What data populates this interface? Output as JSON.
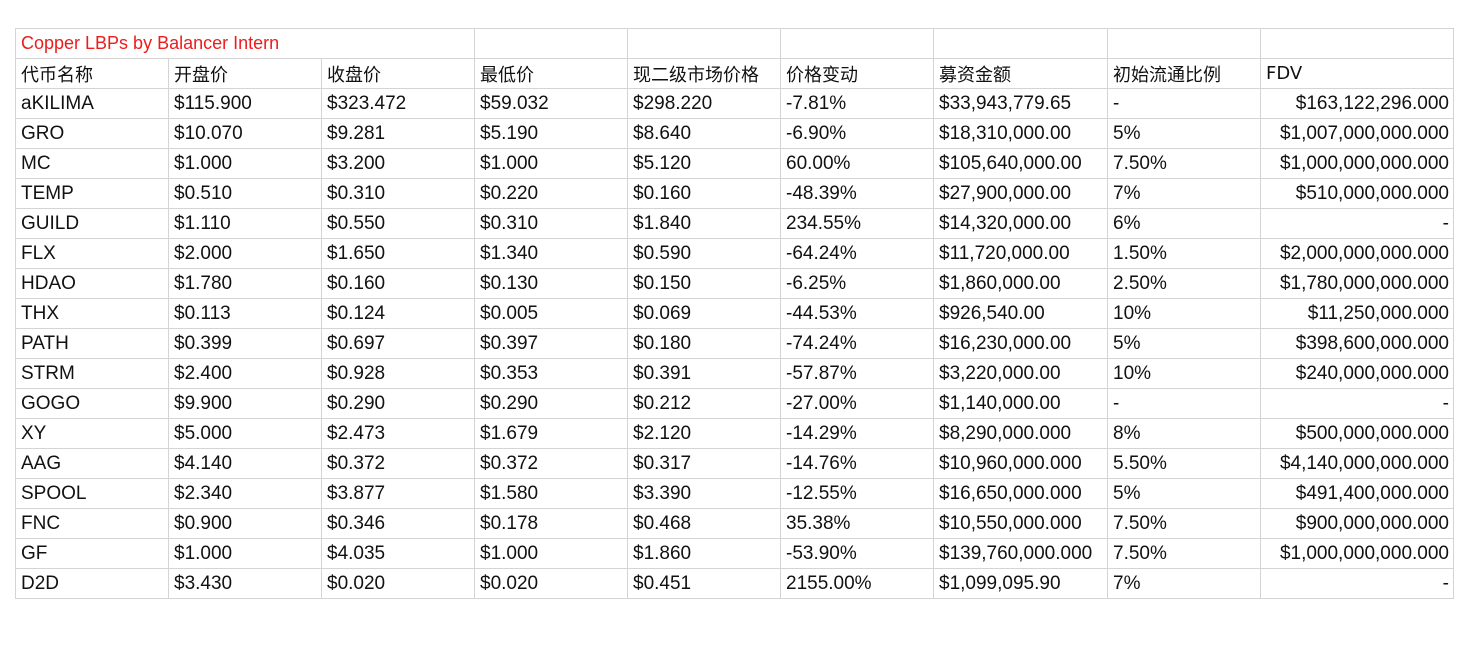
{
  "title": "Copper LBPs by Balancer Intern",
  "colors": {
    "title": "#ee1c1c",
    "grid": "#d4d4d4",
    "text": "#111111"
  },
  "columns": [
    "代币名称",
    "开盘价",
    "收盘价",
    "最低价",
    "现二级市场价格",
    "价格变动",
    "募资金额",
    "初始流通比例",
    "FDV"
  ],
  "rows": [
    [
      "aKILIMA",
      "$115.900",
      "$323.472",
      "$59.032",
      "$298.220",
      "-7.81%",
      "$33,943,779.65",
      "-",
      "$163,122,296.000"
    ],
    [
      "GRO",
      "$10.070",
      "$9.281",
      "$5.190",
      "$8.640",
      "-6.90%",
      "$18,310,000.00",
      "5%",
      "$1,007,000,000.000"
    ],
    [
      "MC",
      "$1.000",
      "$3.200",
      "$1.000",
      "$5.120",
      "60.00%",
      "$105,640,000.00",
      "7.50%",
      "$1,000,000,000.000"
    ],
    [
      "TEMP",
      "$0.510",
      "$0.310",
      "$0.220",
      "$0.160",
      "-48.39%",
      "$27,900,000.00",
      "7%",
      "$510,000,000.000"
    ],
    [
      "GUILD",
      "$1.110",
      "$0.550",
      "$0.310",
      "$1.840",
      "234.55%",
      "$14,320,000.00",
      "6%",
      "-"
    ],
    [
      "FLX",
      "$2.000",
      "$1.650",
      "$1.340",
      "$0.590",
      "-64.24%",
      "$11,720,000.00",
      "1.50%",
      "$2,000,000,000.000"
    ],
    [
      "HDAO",
      "$1.780",
      "$0.160",
      "$0.130",
      "$0.150",
      "-6.25%",
      "$1,860,000.00",
      "2.50%",
      "$1,780,000,000.000"
    ],
    [
      "THX",
      "$0.113",
      "$0.124",
      "$0.005",
      "$0.069",
      "-44.53%",
      "$926,540.00",
      "10%",
      "$11,250,000.000"
    ],
    [
      "PATH",
      "$0.399",
      "$0.697",
      "$0.397",
      "$0.180",
      "-74.24%",
      "$16,230,000.00",
      "5%",
      "$398,600,000.000"
    ],
    [
      "STRM",
      "$2.400",
      "$0.928",
      "$0.353",
      "$0.391",
      "-57.87%",
      "$3,220,000.00",
      "10%",
      "$240,000,000.000"
    ],
    [
      "GOGO",
      "$9.900",
      "$0.290",
      "$0.290",
      "$0.212",
      "-27.00%",
      "$1,140,000.00",
      "-",
      "-"
    ],
    [
      "XY",
      "$5.000",
      "$2.473",
      "$1.679",
      "$2.120",
      "-14.29%",
      "$8,290,000.000",
      "8%",
      "$500,000,000.000"
    ],
    [
      "AAG",
      "$4.140",
      "$0.372",
      "$0.372",
      "$0.317",
      "-14.76%",
      "$10,960,000.000",
      "5.50%",
      "$4,140,000,000.000"
    ],
    [
      "SPOOL",
      "$2.340",
      "$3.877",
      "$1.580",
      "$3.390",
      "-12.55%",
      "$16,650,000.000",
      "5%",
      "$491,400,000.000"
    ],
    [
      "FNC",
      "$0.900",
      "$0.346",
      "$0.178",
      "$0.468",
      "35.38%",
      "$10,550,000.000",
      "7.50%",
      "$900,000,000.000"
    ],
    [
      "GF",
      "$1.000",
      "$4.035",
      "$1.000",
      "$1.860",
      "-53.90%",
      "$139,760,000.000",
      "7.50%",
      "$1,000,000,000.000"
    ],
    [
      "D2D",
      "$3.430",
      "$0.020",
      "$0.020",
      "$0.451",
      "2155.00%",
      "$1,099,095.90",
      "7%",
      "-"
    ]
  ]
}
